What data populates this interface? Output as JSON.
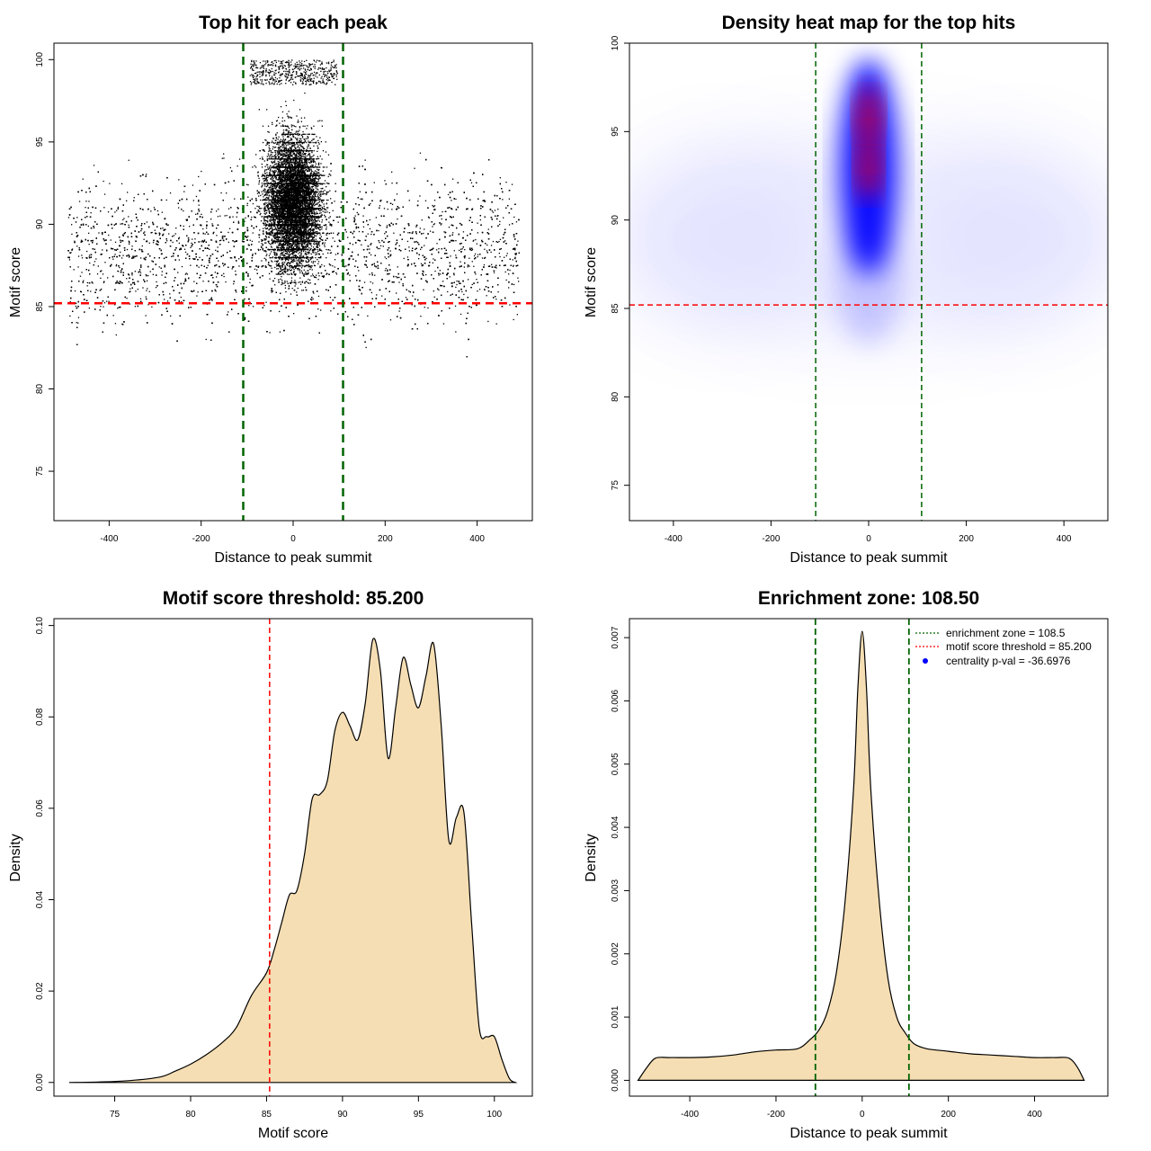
{
  "chart_data": [
    {
      "type": "scatter",
      "title": "Top hit for each peak",
      "xlabel": "Distance to peak summit",
      "ylabel": "Motif score",
      "xlim": [
        -520,
        520
      ],
      "ylim": [
        72,
        101
      ],
      "xticks": [
        -400,
        -200,
        0,
        200,
        400
      ],
      "yticks": [
        75,
        80,
        85,
        90,
        95,
        100
      ],
      "xtick_labels": [
        "-400",
        "-200",
        "0",
        "200",
        "400"
      ],
      "ytick_labels": [
        "75",
        "80",
        "85",
        "90",
        "95",
        "100"
      ],
      "vlines": [
        -108.5,
        108.5
      ],
      "hline": 85.2,
      "vline_color": "#006400",
      "hline_color": "#ff0000",
      "point_color": "#000000"
    },
    {
      "type": "heatmap",
      "title": "Density heat map for the top hits",
      "xlabel": "Distance to peak summit",
      "ylabel": "Motif score",
      "xlim": [
        -490,
        490
      ],
      "ylim": [
        73,
        100
      ],
      "xticks": [
        -400,
        -200,
        0,
        200,
        400
      ],
      "yticks": [
        75,
        80,
        85,
        90,
        95,
        100
      ],
      "xtick_labels": [
        "-400",
        "-200",
        "0",
        "200",
        "400"
      ],
      "ytick_labels": [
        "75",
        "80",
        "85",
        "90",
        "95",
        "100"
      ],
      "vlines": [
        -108.5,
        108.5
      ],
      "hline": 85.2,
      "vline_color": "#006400",
      "hline_color": "#ff0000",
      "color_scale": [
        "#ffffff",
        "#0000ff",
        "#ff0000"
      ]
    },
    {
      "type": "area",
      "title": "Motif score threshold: 85.200",
      "xlabel": "Motif score",
      "ylabel": "Density",
      "xlim": [
        71,
        102.5
      ],
      "ylim": [
        -0.003,
        0.1015
      ],
      "xticks": [
        75,
        80,
        85,
        90,
        95,
        100
      ],
      "yticks": [
        0.0,
        0.02,
        0.04,
        0.06,
        0.08,
        0.1
      ],
      "xtick_labels": [
        "75",
        "80",
        "85",
        "90",
        "95",
        "100"
      ],
      "ytick_labels": [
        "0.00",
        "0.02",
        "0.04",
        "0.06",
        "0.08",
        "0.10"
      ],
      "x": [
        72,
        74,
        76,
        78,
        79,
        80,
        81,
        82,
        83,
        84,
        85,
        85.5,
        86,
        86.5,
        87,
        87.5,
        88,
        88.5,
        89,
        89.5,
        90,
        90.5,
        91,
        91.5,
        92,
        92.5,
        93,
        93.5,
        94,
        94.5,
        95,
        95.5,
        96,
        96.5,
        97,
        97.5,
        98,
        98.5,
        99,
        99.5,
        100,
        100.5,
        101,
        101.4
      ],
      "y": [
        0.0,
        0.0001,
        0.0004,
        0.0012,
        0.0025,
        0.004,
        0.006,
        0.0085,
        0.012,
        0.019,
        0.024,
        0.029,
        0.035,
        0.041,
        0.042,
        0.05,
        0.062,
        0.063,
        0.066,
        0.077,
        0.081,
        0.078,
        0.075,
        0.083,
        0.097,
        0.09,
        0.071,
        0.082,
        0.093,
        0.087,
        0.082,
        0.089,
        0.096,
        0.078,
        0.053,
        0.058,
        0.059,
        0.035,
        0.012,
        0.01,
        0.01,
        0.005,
        0.0008,
        0.0
      ]
    },
    {
      "type": "area",
      "title": "Enrichment zone: 108.50",
      "xlabel": "Distance to peak summit",
      "ylabel": "Density",
      "xlim": [
        -540,
        570
      ],
      "ylim": [
        -0.00025,
        0.0073
      ],
      "xticks": [
        -400,
        -200,
        0,
        200,
        400
      ],
      "yticks": [
        0.0,
        0.001,
        0.002,
        0.003,
        0.004,
        0.005,
        0.006,
        0.007
      ],
      "xtick_labels": [
        "-400",
        "-200",
        "0",
        "200",
        "400"
      ],
      "ytick_labels": [
        "0.000",
        "0.001",
        "0.002",
        "0.003",
        "0.004",
        "0.005",
        "0.006",
        "0.007"
      ],
      "vlines": [
        -108.5,
        108.5
      ],
      "vline_color": "#006400",
      "x": [
        -520,
        -500,
        -480,
        -450,
        -400,
        -350,
        -300,
        -250,
        -200,
        -150,
        -120,
        -100,
        -80,
        -60,
        -40,
        -20,
        -10,
        0,
        10,
        20,
        40,
        60,
        80,
        100,
        120,
        150,
        200,
        250,
        300,
        350,
        400,
        450,
        480,
        500,
        515
      ],
      "y": [
        0.0,
        0.0002,
        0.00035,
        0.00036,
        0.00036,
        0.00037,
        0.0004,
        0.00045,
        0.00048,
        0.0005,
        0.00065,
        0.0008,
        0.0011,
        0.0017,
        0.0028,
        0.0046,
        0.0062,
        0.0071,
        0.0062,
        0.0046,
        0.0028,
        0.0016,
        0.001,
        0.00075,
        0.00058,
        0.0005,
        0.00046,
        0.00042,
        0.0004,
        0.00038,
        0.00036,
        0.00036,
        0.00035,
        0.0002,
        0.0
      ],
      "legend": {
        "position": "top-right",
        "entries": [
          {
            "label": "enrichment zone = 108.5",
            "color": "#006400",
            "style": "dotted"
          },
          {
            "label": "motif score threshold = 85.200",
            "color": "#ff0000",
            "style": "dotted"
          },
          {
            "label": "centrality p-val = -36.6976",
            "color": "#0000ff",
            "style": "point"
          }
        ]
      }
    }
  ]
}
